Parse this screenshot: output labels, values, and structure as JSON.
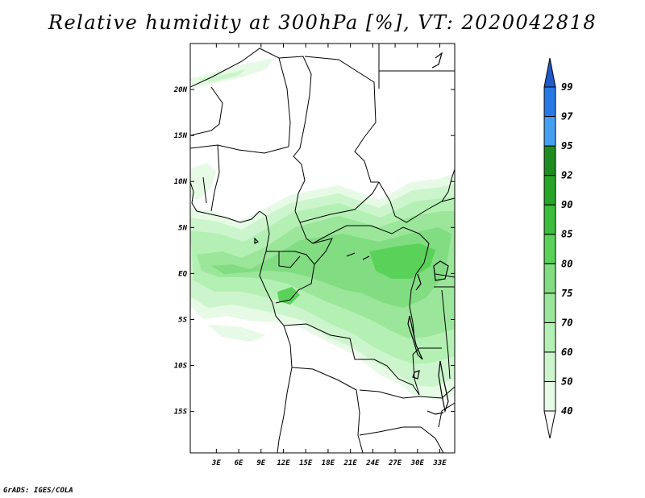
{
  "title": "Relative humidity at 300hPa [%], VT: 2020042818",
  "credit": "GrADS: IGES/COLA",
  "map": {
    "lon_range": [
      -0.5,
      35
    ],
    "lat_range": [
      -19.5,
      25
    ],
    "lat_ticks": [
      {
        "value": 20,
        "label": "20N"
      },
      {
        "value": 15,
        "label": "15N"
      },
      {
        "value": 10,
        "label": "10N"
      },
      {
        "value": 5,
        "label": "5N"
      },
      {
        "value": 0,
        "label": "EQ"
      },
      {
        "value": -5,
        "label": "5S"
      },
      {
        "value": -10,
        "label": "10S"
      },
      {
        "value": -15,
        "label": "15S"
      }
    ],
    "lon_ticks": [
      {
        "value": 3,
        "label": "3E"
      },
      {
        "value": 6,
        "label": "6E"
      },
      {
        "value": 9,
        "label": "9E"
      },
      {
        "value": 12,
        "label": "12E"
      },
      {
        "value": 15,
        "label": "15E"
      },
      {
        "value": 18,
        "label": "18E"
      },
      {
        "value": 21,
        "label": "21E"
      },
      {
        "value": 24,
        "label": "24E"
      },
      {
        "value": 27,
        "label": "27E"
      },
      {
        "value": 30,
        "label": "30E"
      },
      {
        "value": 33,
        "label": "33E"
      }
    ]
  },
  "colorbar": {
    "levels": [
      "40",
      "50",
      "60",
      "70",
      "75",
      "80",
      "85",
      "90",
      "92",
      "95",
      "97",
      "99"
    ],
    "colors": [
      "#ffffff",
      "#e6fae6",
      "#cdf5cd",
      "#b4f0b4",
      "#9be69b",
      "#82dc82",
      "#5ad25a",
      "#3cbe3c",
      "#28a428",
      "#1e8c1e",
      "#46a0f0",
      "#2878e6",
      "#1e5ac8"
    ]
  }
}
